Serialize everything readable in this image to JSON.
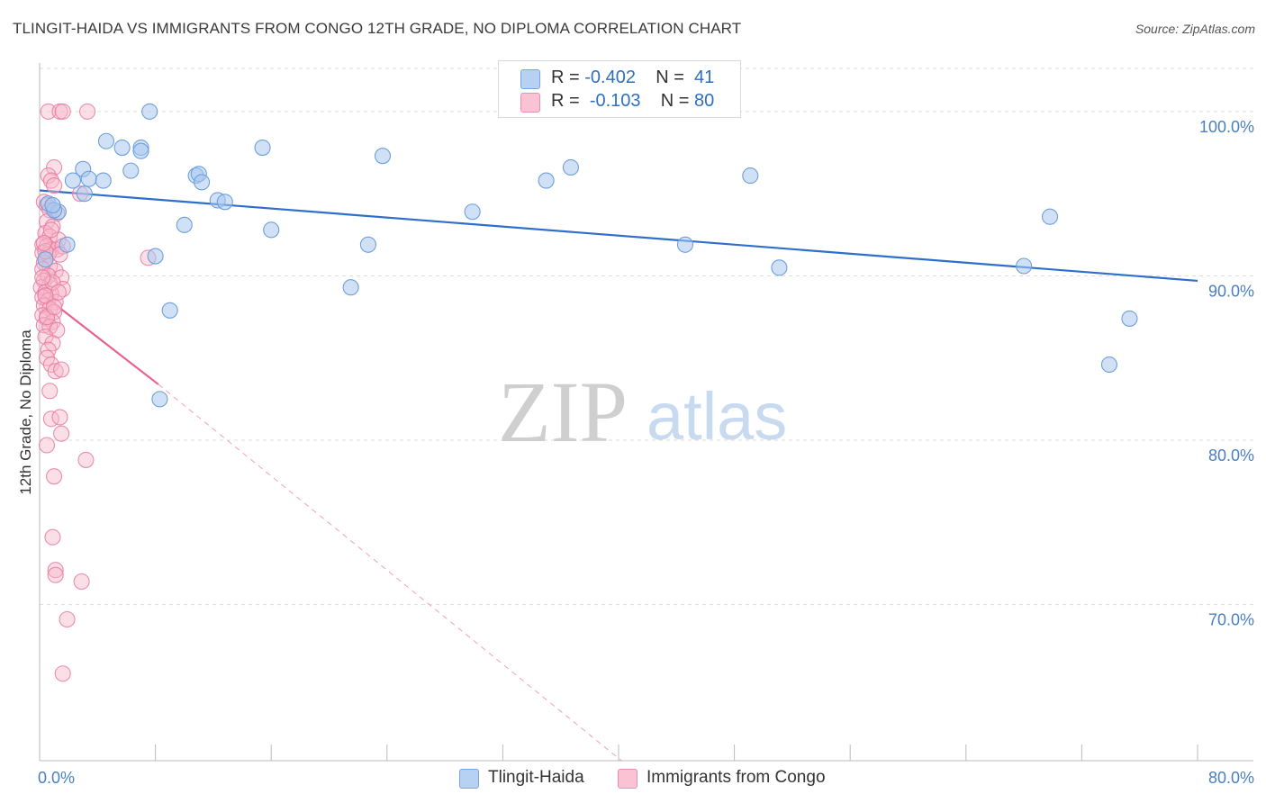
{
  "header": {
    "title": "TLINGIT-HAIDA VS IMMIGRANTS FROM CONGO 12TH GRADE, NO DIPLOMA CORRELATION CHART",
    "source": "Source: ZipAtlas.com"
  },
  "legend": {
    "rows": [
      {
        "r_label": "R =",
        "r_value": "-0.402",
        "n_label": "N =",
        "n_value": "41"
      },
      {
        "r_label": "R =",
        "r_value": "-0.103",
        "n_label": "N =",
        "n_value": "80"
      }
    ]
  },
  "bottom_legend": {
    "series1": "Tlingit-Haida",
    "series2": "Immigrants from Congo"
  },
  "watermark": {
    "zip": "ZIP",
    "atlas": "atlas"
  },
  "colors": {
    "blue_fill": "#a9c8ee",
    "blue_stroke": "#6e9fdc",
    "blue_line": "#2f6fcc",
    "pink_fill": "#f7b7ca",
    "pink_stroke": "#e87aa0",
    "pink_line": "#e8628f",
    "tick_text": "#4a7fc1",
    "grid": "#dddddd"
  },
  "chart_data": {
    "type": "scatter",
    "title": "TLINGIT-HAIDA VS IMMIGRANTS FROM CONGO 12TH GRADE, NO DIPLOMA CORRELATION CHART",
    "xlabel": "",
    "ylabel": "12th Grade, No Diploma",
    "xlim": [
      0,
      80
    ],
    "ylim": [
      60.5,
      103.5
    ],
    "x_tick_labels": [
      {
        "value": 0,
        "label": "0.0%"
      },
      {
        "value": 80,
        "label": "80.0%"
      }
    ],
    "y_ticks": [
      {
        "value": 100,
        "label": "100.0%"
      },
      {
        "value": 90,
        "label": "90.0%"
      },
      {
        "value": 80,
        "label": "80.0%"
      },
      {
        "value": 70,
        "label": "70.0%"
      }
    ],
    "x_minor_ticks": [
      8,
      16,
      24,
      32,
      40,
      48,
      56,
      64,
      72,
      80
    ],
    "series": [
      {
        "name": "Tlingit-Haida",
        "color": "blue",
        "points": [
          [
            7.6,
            100.0
          ],
          [
            4.6,
            98.2
          ],
          [
            5.7,
            97.8
          ],
          [
            7.0,
            97.8
          ],
          [
            7.0,
            97.6
          ],
          [
            15.4,
            97.8
          ],
          [
            23.7,
            97.3
          ],
          [
            3.0,
            96.5
          ],
          [
            6.3,
            96.4
          ],
          [
            10.8,
            96.1
          ],
          [
            11.0,
            96.2
          ],
          [
            11.2,
            95.7
          ],
          [
            2.3,
            95.8
          ],
          [
            3.4,
            95.9
          ],
          [
            4.4,
            95.8
          ],
          [
            36.7,
            96.6
          ],
          [
            35.0,
            95.8
          ],
          [
            49.1,
            96.1
          ],
          [
            0.6,
            94.4
          ],
          [
            1.3,
            93.9
          ],
          [
            3.1,
            95.0
          ],
          [
            12.3,
            94.6
          ],
          [
            12.8,
            94.5
          ],
          [
            29.9,
            93.9
          ],
          [
            1.0,
            94.0
          ],
          [
            10.0,
            93.1
          ],
          [
            16.0,
            92.8
          ],
          [
            22.7,
            91.9
          ],
          [
            1.9,
            91.9
          ],
          [
            8.0,
            91.2
          ],
          [
            44.6,
            91.9
          ],
          [
            69.8,
            93.6
          ],
          [
            51.1,
            90.5
          ],
          [
            68.0,
            90.6
          ],
          [
            21.5,
            89.3
          ],
          [
            0.4,
            91.0
          ],
          [
            9.0,
            87.9
          ],
          [
            75.3,
            87.4
          ],
          [
            73.9,
            84.6
          ],
          [
            8.3,
            82.5
          ],
          [
            0.9,
            94.3
          ]
        ],
        "trend": {
          "x_start": 0,
          "y_start": 95.2,
          "x_end": 80,
          "y_end": 89.7
        }
      },
      {
        "name": "Immigrants from Congo",
        "color": "pink",
        "points": [
          [
            0.6,
            100.0
          ],
          [
            1.4,
            100.0
          ],
          [
            1.6,
            100.0
          ],
          [
            3.3,
            100.0
          ],
          [
            1.0,
            96.6
          ],
          [
            0.6,
            96.1
          ],
          [
            0.8,
            95.8
          ],
          [
            1.0,
            95.5
          ],
          [
            2.8,
            95.0
          ],
          [
            0.3,
            94.5
          ],
          [
            0.5,
            94.3
          ],
          [
            0.7,
            94.0
          ],
          [
            1.2,
            93.8
          ],
          [
            0.5,
            93.3
          ],
          [
            0.9,
            93.0
          ],
          [
            0.4,
            92.6
          ],
          [
            0.7,
            92.4
          ],
          [
            1.3,
            92.2
          ],
          [
            0.2,
            91.9
          ],
          [
            0.5,
            91.8
          ],
          [
            0.8,
            91.6
          ],
          [
            1.2,
            91.6
          ],
          [
            1.6,
            91.8
          ],
          [
            0.2,
            91.4
          ],
          [
            0.6,
            91.3
          ],
          [
            1.4,
            91.3
          ],
          [
            7.5,
            91.1
          ],
          [
            0.3,
            90.8
          ],
          [
            0.7,
            90.6
          ],
          [
            0.2,
            90.4
          ],
          [
            1.1,
            90.3
          ],
          [
            0.6,
            90.0
          ],
          [
            1.5,
            89.9
          ],
          [
            0.3,
            89.7
          ],
          [
            0.7,
            89.5
          ],
          [
            0.1,
            89.3
          ],
          [
            1.6,
            89.2
          ],
          [
            0.4,
            89.0
          ],
          [
            0.8,
            88.9
          ],
          [
            0.2,
            88.7
          ],
          [
            0.6,
            88.5
          ],
          [
            1.1,
            88.4
          ],
          [
            0.3,
            88.2
          ],
          [
            0.7,
            88.0
          ],
          [
            1.0,
            87.8
          ],
          [
            0.2,
            87.6
          ],
          [
            0.5,
            87.4
          ],
          [
            0.9,
            87.2
          ],
          [
            0.3,
            87.0
          ],
          [
            0.7,
            86.9
          ],
          [
            1.2,
            86.7
          ],
          [
            0.4,
            86.3
          ],
          [
            0.9,
            85.9
          ],
          [
            0.6,
            85.5
          ],
          [
            0.5,
            85.0
          ],
          [
            0.8,
            84.6
          ],
          [
            1.1,
            84.2
          ],
          [
            1.5,
            84.3
          ],
          [
            0.7,
            83.0
          ],
          [
            0.8,
            81.3
          ],
          [
            1.4,
            81.4
          ],
          [
            1.5,
            80.4
          ],
          [
            0.5,
            79.7
          ],
          [
            3.2,
            78.8
          ],
          [
            1.0,
            77.8
          ],
          [
            0.9,
            74.1
          ],
          [
            1.1,
            72.1
          ],
          [
            1.1,
            71.8
          ],
          [
            2.9,
            71.4
          ],
          [
            1.9,
            69.1
          ],
          [
            1.6,
            65.8
          ],
          [
            0.4,
            91.5
          ],
          [
            0.3,
            92.0
          ],
          [
            0.9,
            89.6
          ],
          [
            0.5,
            87.5
          ],
          [
            1.3,
            89.0
          ],
          [
            0.2,
            89.9
          ],
          [
            0.8,
            92.8
          ],
          [
            0.4,
            88.8
          ],
          [
            1.0,
            88.1
          ]
        ],
        "trend": {
          "x_start": 0,
          "y_start": 89.0,
          "x_end": 8.2,
          "y_end": 83.4
        },
        "trend_extension": {
          "x_start": 8.2,
          "y_start": 83.4,
          "x_end": 40.2,
          "y_end": 60.5
        }
      }
    ]
  }
}
